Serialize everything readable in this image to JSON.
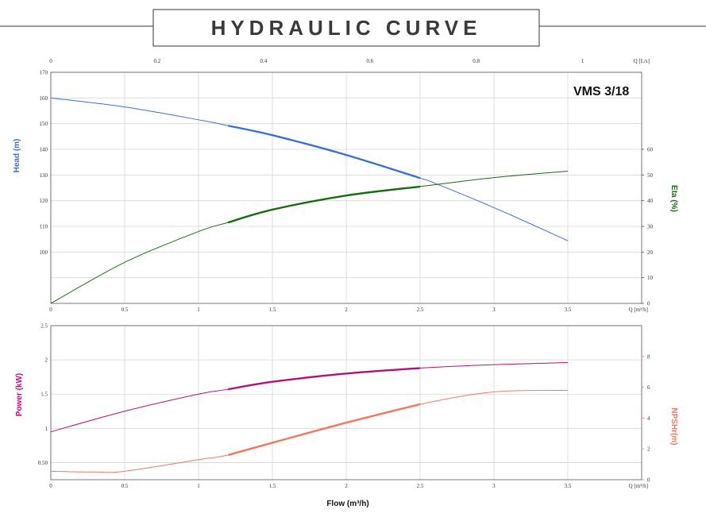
{
  "title": "HYDRAULIC CURVE",
  "model": "VMS 3/18",
  "xlabel": "Flow (m³/h)",
  "chart_data": [
    {
      "type": "line",
      "name": "top-chart",
      "x_ticks": [
        "0",
        "0.5",
        "1",
        "1.5",
        "2",
        "2.5",
        "3",
        "3.5"
      ],
      "x_unit": "Q [m³/h]",
      "xlim": [
        0,
        4
      ],
      "x2_ticks": [
        {
          "label": "0",
          "q": 0
        },
        {
          "label": "0.2",
          "q": 0.72
        },
        {
          "label": "0.4",
          "q": 1.44
        },
        {
          "label": "0.6",
          "q": 2.16
        },
        {
          "label": "0.8",
          "q": 2.88
        },
        {
          "label": "1",
          "q": 3.6
        }
      ],
      "x2_unit": "Q [L/s]",
      "left_axis": {
        "label": "Head (m)",
        "ylim": [
          80,
          170
        ],
        "ticks": [
          "100",
          "110",
          "120",
          "130",
          "140",
          "150",
          "160",
          "170"
        ],
        "color": "#3b6fd4"
      },
      "right_axis": {
        "label": "Eta (%)",
        "ylim": [
          0,
          90
        ],
        "ticks": [
          "0",
          "10",
          "20",
          "30",
          "40",
          "50",
          "60"
        ],
        "color": "#1a6b12"
      },
      "series": [
        {
          "name": "Head",
          "axis": "left",
          "color": "#3b6fd4",
          "x": [
            0,
            0.5,
            1,
            1.2,
            1.5,
            2,
            2.5,
            2.6,
            3,
            3.5
          ],
          "y": [
            160,
            156.5,
            151.5,
            149.2,
            145.5,
            137.8,
            128.8,
            126.8,
            117.3,
            104.4
          ],
          "bold_range": [
            1.2,
            2.5
          ]
        },
        {
          "name": "Eta",
          "axis": "right",
          "color": "#1a6b12",
          "x": [
            0,
            0.5,
            1,
            1.2,
            1.5,
            2,
            2.5,
            3,
            3.5
          ],
          "y": [
            0,
            16,
            28,
            31.5,
            36.5,
            42,
            45.5,
            49,
            51.5
          ],
          "bold_range": [
            1.2,
            2.5
          ]
        }
      ]
    },
    {
      "type": "line",
      "name": "bottom-chart",
      "x_ticks": [
        "0",
        "0.5",
        "1",
        "1.5",
        "2",
        "2.5",
        "3",
        "3.5"
      ],
      "x_unit": "Q [m³/h]",
      "xlim": [
        0,
        4
      ],
      "left_axis": {
        "label": "Power (kW)",
        "ylim": [
          0.25,
          2.5
        ],
        "ticks": [
          "0.50",
          "1",
          "1.5",
          "2",
          "2.5"
        ],
        "color": "#b0127a"
      },
      "right_axis": {
        "label": "NPSHr(m)",
        "ylim": [
          0,
          10
        ],
        "ticks": [
          "0",
          "2",
          "4",
          "6",
          "8"
        ],
        "color": "#f07860"
      },
      "series": [
        {
          "name": "Power",
          "axis": "left",
          "color": "#b0127a",
          "x": [
            0,
            0.5,
            1,
            1.2,
            1.5,
            2,
            2.5,
            3,
            3.5
          ],
          "y": [
            0.95,
            1.25,
            1.5,
            1.57,
            1.68,
            1.8,
            1.88,
            1.93,
            1.96
          ],
          "bold_range": [
            1.2,
            2.5
          ]
        },
        {
          "name": "NPSHr",
          "axis": "right",
          "color": "#f07860",
          "x": [
            0,
            0.3,
            0.5,
            1,
            1.2,
            1.5,
            2,
            2.5,
            3,
            3.5
          ],
          "y": [
            0.55,
            0.5,
            0.55,
            1.3,
            1.6,
            2.4,
            3.7,
            4.9,
            5.7,
            5.8
          ],
          "bold_range": [
            1.2,
            2.5
          ]
        }
      ]
    }
  ]
}
